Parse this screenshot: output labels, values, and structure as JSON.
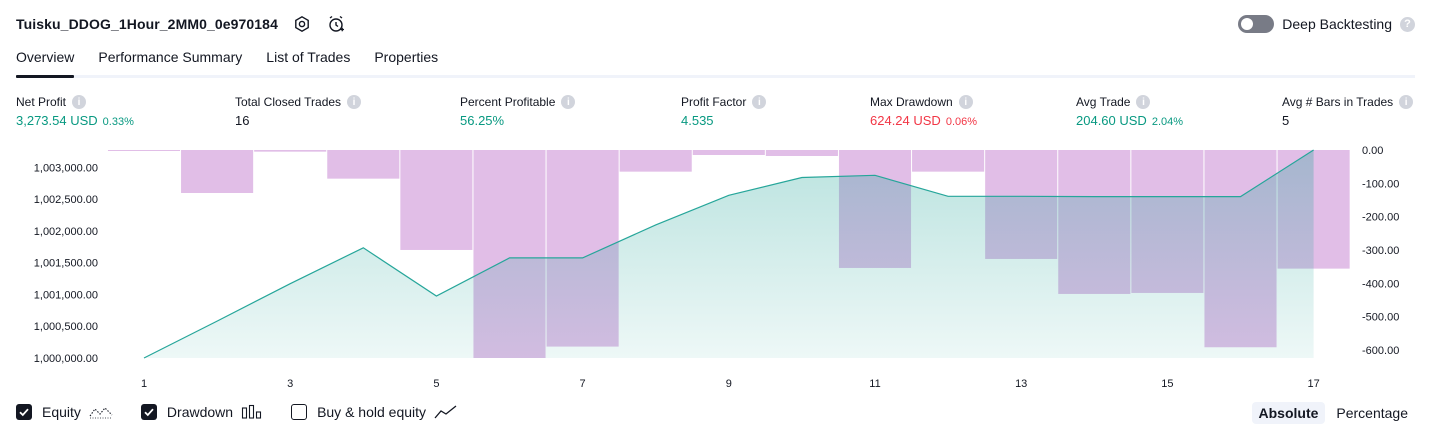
{
  "header": {
    "strategy_title": "Tuisku_DDOG_1Hour_2MM0_0e970184",
    "deep_backtesting_label": "Deep Backtesting",
    "icons": [
      "settings-icon",
      "alarm-add-icon",
      "help-icon"
    ]
  },
  "tabs": [
    {
      "label": "Overview",
      "active": true
    },
    {
      "label": "Performance Summary",
      "active": false
    },
    {
      "label": "List of Trades",
      "active": false
    },
    {
      "label": "Properties",
      "active": false
    }
  ],
  "metrics": {
    "net_profit": {
      "label": "Net Profit",
      "value": "3,273.54 USD",
      "pct": "0.33%"
    },
    "total_closed_trades": {
      "label": "Total Closed Trades",
      "value": "16"
    },
    "percent_profitable": {
      "label": "Percent Profitable",
      "value": "56.25%"
    },
    "profit_factor": {
      "label": "Profit Factor",
      "value": "4.535"
    },
    "max_drawdown": {
      "label": "Max Drawdown",
      "value": "624.24 USD",
      "pct": "0.06%"
    },
    "avg_trade": {
      "label": "Avg Trade",
      "value": "204.60 USD",
      "pct": "2.04%"
    },
    "avg_bars": {
      "label": "Avg # Bars in Trades",
      "value": "5"
    }
  },
  "chart_data": {
    "type": "line",
    "x": [
      1,
      2,
      3,
      4,
      5,
      6,
      7,
      8,
      9,
      10,
      11,
      12,
      13,
      14,
      15,
      16,
      17
    ],
    "x_ticks": [
      "1",
      "3",
      "5",
      "7",
      "9",
      "11",
      "13",
      "15",
      "17"
    ],
    "series": [
      {
        "axis": "left",
        "kind": "area-line",
        "color": "#26a69a",
        "values": [
          1000000,
          1000580,
          1001170,
          1001735,
          1000975,
          1001575,
          1001575,
          1002095,
          1002560,
          1002840,
          1002875,
          1002545,
          1002545,
          1002540,
          1002540,
          1002540,
          1003273.54
        ]
      },
      {
        "name": "Drawdown",
        "axis": "right",
        "kind": "bar",
        "color": "#e1bee7",
        "values": [
          -3,
          -129,
          -5,
          -86,
          -300,
          -624.24,
          -590,
          -65,
          -15,
          -18,
          -354,
          -65,
          -327,
          -432,
          -429,
          -592,
          -356
        ]
      }
    ],
    "left_axis": {
      "min": 1000000,
      "max": 1003273.54,
      "ticks": [
        "1,000,000.00",
        "1,000,500.00",
        "1,001,000.00",
        "1,001,500.00",
        "1,002,000.00",
        "1,002,500.00",
        "1,003,000.00"
      ]
    },
    "right_axis": {
      "min": -624.24,
      "max": 0,
      "ticks": [
        "0.00",
        "-100.00",
        "-200.00",
        "-300.00",
        "-400.00",
        "-500.00",
        "-600.00"
      ]
    },
    "grid": false
  },
  "legend": {
    "equity": {
      "label": "Equity",
      "checked": true
    },
    "drawdown": {
      "label": "Drawdown",
      "checked": true
    },
    "buy_hold": {
      "label": "Buy & hold equity",
      "checked": false
    }
  },
  "modes": {
    "absolute": "Absolute",
    "percentage": "Percentage",
    "active": "absolute"
  }
}
